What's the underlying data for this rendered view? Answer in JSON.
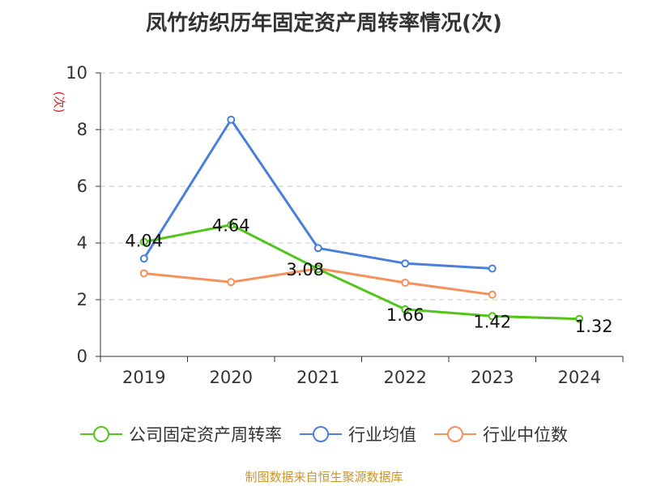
{
  "chart_data": {
    "type": "line",
    "title": "凤竹纺织历年固定资产周转率情况(次)",
    "ylabel": "(次)",
    "xlabel": "",
    "categories": [
      "2019",
      "2020",
      "2021",
      "2022",
      "2023",
      "2024"
    ],
    "ylim": [
      0,
      10
    ],
    "yticks": [
      0,
      2,
      4,
      6,
      8,
      10
    ],
    "grid": true,
    "legend_position": "bottom",
    "series": [
      {
        "name": "公司固定资产周转率",
        "color": "#52c41a",
        "values": [
          4.04,
          4.64,
          3.08,
          1.66,
          1.42,
          1.32
        ],
        "labels": [
          "4.04",
          "4.64",
          "3.08",
          "1.66",
          "1.42",
          "1.32"
        ]
      },
      {
        "name": "行业均值",
        "color": "#4a7fdb",
        "values": [
          3.45,
          8.35,
          3.82,
          3.28,
          3.1,
          null
        ]
      },
      {
        "name": "行业中位数",
        "color": "#f5915a",
        "values": [
          2.93,
          2.62,
          3.1,
          2.6,
          2.18,
          null
        ]
      }
    ]
  },
  "source": "制图数据来自恒生聚源数据库"
}
